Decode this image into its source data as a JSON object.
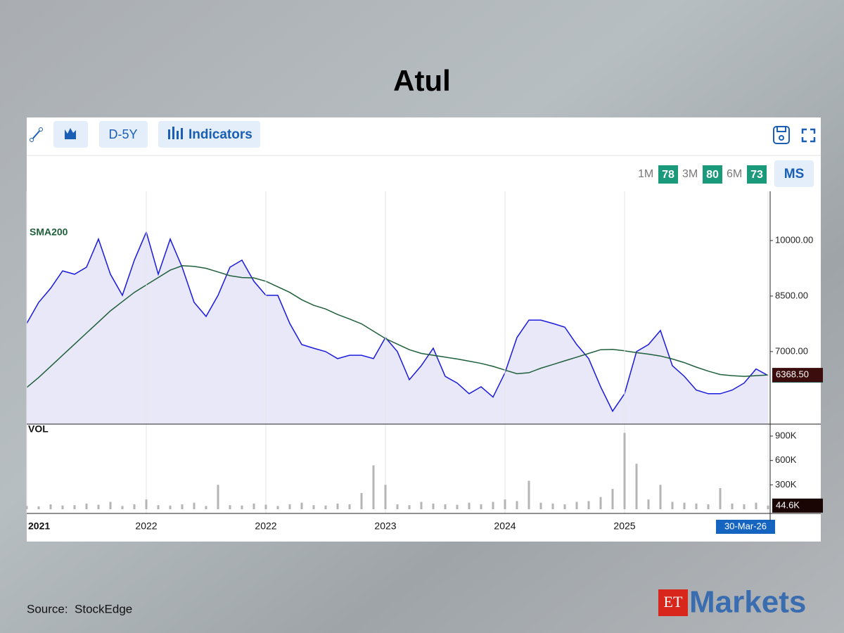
{
  "title": "Atul",
  "toolbar": {
    "range": "D-5Y",
    "indicators": "Indicators"
  },
  "scores": [
    {
      "period": "1M",
      "score": 78
    },
    {
      "period": "3M",
      "score": 80
    },
    {
      "period": "6M",
      "score": 73
    }
  ],
  "ms_button": "MS",
  "source": "Source:  StockEdge",
  "logo": {
    "et": "ET",
    "text": "Markets"
  },
  "chart_data": [
    {
      "type": "line",
      "ylim": [
        5040,
        11330
      ],
      "yticks": [
        {
          "value": 7000,
          "label": "7000.00"
        },
        {
          "value": 8500,
          "label": "8500.00"
        },
        {
          "value": 10000,
          "label": "10000.00"
        }
      ],
      "series": [
        {
          "color": "#1a1adc",
          "values": [
            7760,
            8330,
            8710,
            9180,
            9090,
            9280,
            10040,
            9090,
            8520,
            9470,
            10230,
            9090,
            10040,
            9280,
            8330,
            7950,
            8520,
            9280,
            9470,
            8900,
            8520,
            8520,
            7760,
            7190,
            7090,
            7000,
            6810,
            6900,
            6900,
            6810,
            7380,
            7000,
            6240,
            6620,
            7090,
            6330,
            6150,
            5860,
            6050,
            5770,
            6430,
            7380,
            7850,
            7850,
            7760,
            7660,
            7190,
            6810,
            6050,
            5390,
            5860,
            7000,
            7190,
            7570,
            6620,
            6330,
            5960,
            5860,
            5860,
            5960,
            6150,
            6530,
            6352.87
          ]
        },
        {
          "name": "SMA200",
          "color": "#1f5f3a",
          "values": [
            6030,
            6300,
            6600,
            6900,
            7200,
            7500,
            7800,
            8100,
            8350,
            8600,
            8800,
            9000,
            9200,
            9320,
            9300,
            9250,
            9150,
            9050,
            9000,
            8990,
            8900,
            8750,
            8600,
            8400,
            8250,
            8150,
            8000,
            7880,
            7750,
            7550,
            7350,
            7200,
            7050,
            6950,
            6900,
            6850,
            6800,
            6740,
            6680,
            6600,
            6500,
            6400,
            6430,
            6550,
            6650,
            6750,
            6850,
            6950,
            7050,
            7060,
            7020,
            6970,
            6930,
            6880,
            6800,
            6700,
            6580,
            6470,
            6380,
            6350,
            6330,
            6350,
            6368.5
          ],
          "value_labels": [
            null,
            null,
            null,
            null,
            null,
            null,
            null,
            null,
            null,
            null,
            null,
            null,
            null,
            null,
            null,
            null,
            null,
            null,
            null,
            null,
            null,
            null,
            null,
            null,
            null,
            null,
            null,
            null,
            null,
            null,
            null,
            null,
            null,
            null,
            null,
            null,
            null,
            null,
            null,
            null,
            null,
            null,
            null,
            null,
            null,
            null,
            null,
            null,
            null,
            null,
            null,
            null,
            null,
            null,
            null,
            null,
            null,
            null,
            null,
            null,
            null,
            null,
            "6368.50"
          ]
        }
      ],
      "grid": "x"
    },
    {
      "type": "bar",
      "label": "VOL",
      "color": "#b5b5b5",
      "categories": [
        "2021",
        null,
        null,
        null,
        null,
        null,
        null,
        null,
        null,
        null,
        "2022",
        null,
        null,
        null,
        null,
        null,
        null,
        null,
        null,
        null,
        "2022",
        null,
        null,
        null,
        null,
        null,
        null,
        null,
        null,
        null,
        "2023",
        null,
        null,
        null,
        null,
        null,
        null,
        null,
        null,
        null,
        "2024",
        null,
        null,
        null,
        null,
        null,
        null,
        null,
        null,
        null,
        "2025",
        null,
        null,
        null,
        null,
        null,
        null,
        null,
        null,
        null,
        null,
        null,
        "30-Mar-26"
      ],
      "ylim": [
        0,
        1030000
      ],
      "yticks": [
        {
          "value": 300000,
          "label": "300K"
        },
        {
          "value": 600000,
          "label": "600K"
        },
        {
          "value": 900000,
          "label": "900K"
        }
      ],
      "values": [
        40000,
        35000,
        60000,
        45000,
        50000,
        70000,
        55000,
        90000,
        40000,
        60000,
        120000,
        50000,
        45000,
        60000,
        80000,
        40000,
        300000,
        50000,
        45000,
        70000,
        55000,
        40000,
        60000,
        80000,
        50000,
        45000,
        70000,
        60000,
        200000,
        540000,
        300000,
        60000,
        50000,
        90000,
        70000,
        60000,
        55000,
        80000,
        60000,
        90000,
        120000,
        100000,
        350000,
        80000,
        70000,
        60000,
        90000,
        100000,
        150000,
        250000,
        940000,
        560000,
        120000,
        300000,
        90000,
        80000,
        70000,
        60000,
        260000,
        70000,
        60000,
        80000,
        44600
      ],
      "value_labels": [
        null,
        null,
        null,
        null,
        null,
        null,
        null,
        null,
        null,
        null,
        null,
        null,
        null,
        null,
        null,
        null,
        null,
        null,
        null,
        null,
        null,
        null,
        null,
        null,
        null,
        null,
        null,
        null,
        null,
        null,
        null,
        null,
        null,
        null,
        null,
        null,
        null,
        null,
        null,
        null,
        null,
        null,
        null,
        null,
        null,
        null,
        null,
        null,
        null,
        null,
        null,
        null,
        null,
        null,
        null,
        null,
        null,
        null,
        null,
        null,
        null,
        null,
        "44.6K"
      ]
    }
  ]
}
